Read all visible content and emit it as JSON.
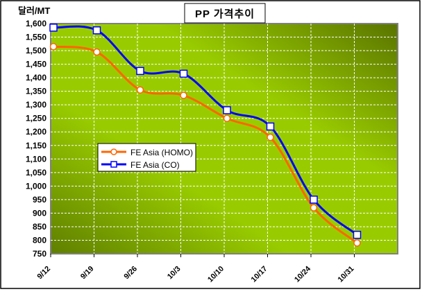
{
  "chart_data": {
    "type": "line",
    "title": "PP 가격추이",
    "ylabel": "달러/MT",
    "xlabel": "",
    "categories": [
      "9/12",
      "9/19",
      "9/26",
      "10/3",
      "10/10",
      "10/17",
      "10/24",
      "10/31"
    ],
    "ylim": [
      750,
      1600
    ],
    "ystep": 50,
    "yticks": [
      "750",
      "800",
      "850",
      "900",
      "950",
      "1,000",
      "1,050",
      "1,100",
      "1,150",
      "1,200",
      "1,250",
      "1,300",
      "1,350",
      "1,400",
      "1,450",
      "1,500",
      "1,550",
      "1,600"
    ],
    "grid": true,
    "legend_position": "middle-left",
    "series": [
      {
        "name": "FE Asia (HOMO)",
        "color": "#ff6600",
        "marker": "circle",
        "values": [
          1515,
          1495,
          1355,
          1335,
          1250,
          1180,
          920,
          790
        ]
      },
      {
        "name": "FE Asia (CO)",
        "color": "#0000ff",
        "marker": "square",
        "values": [
          1585,
          1575,
          1425,
          1415,
          1280,
          1220,
          950,
          820
        ]
      }
    ]
  }
}
